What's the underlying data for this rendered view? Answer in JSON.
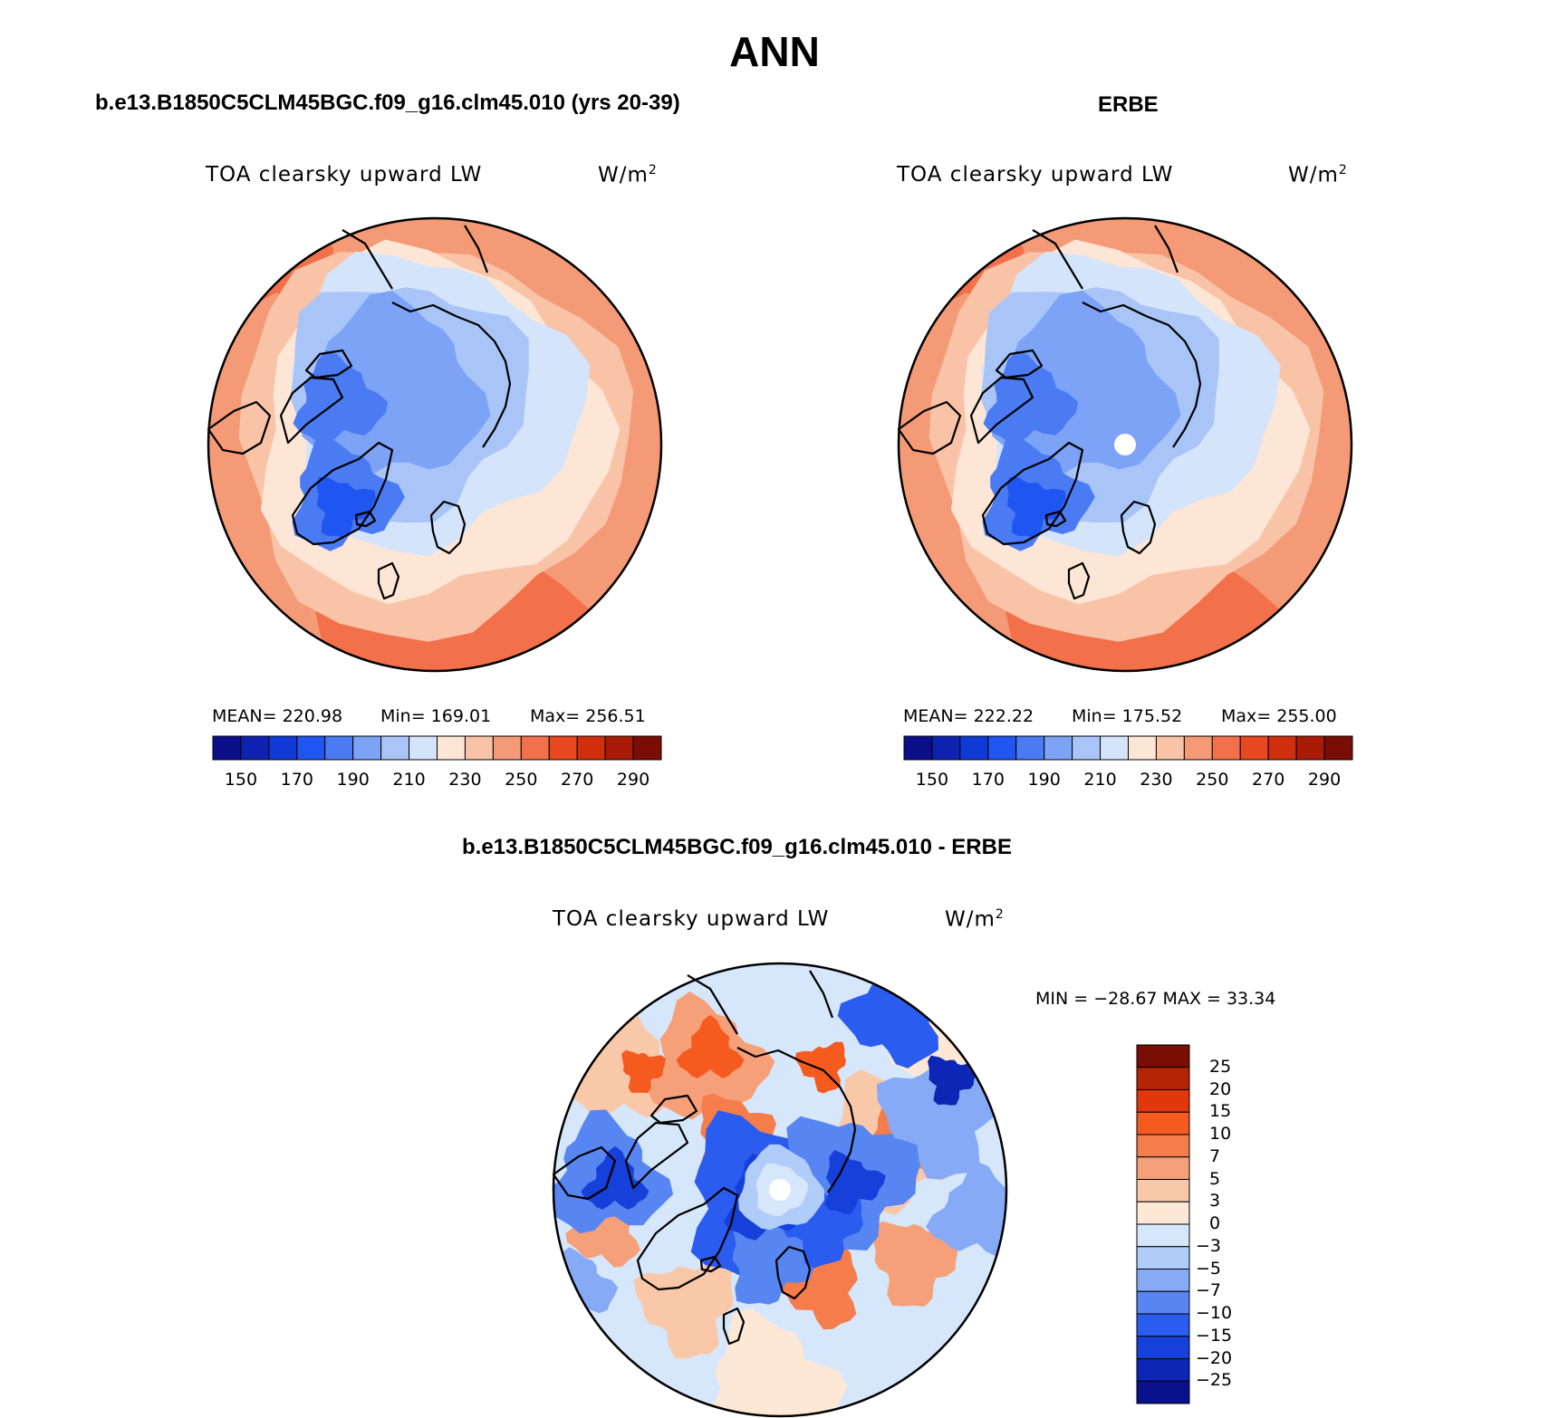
{
  "header": {
    "title": "ANN"
  },
  "panel_model": {
    "title": "b.e13.B1850C5CLM45BGC.f09_g16.clm45.010 (yrs 20-39)",
    "variable": "TOA clearsky upward LW",
    "units_base": "W/m",
    "units_exp": "2",
    "mean_label": "MEAN= 220.98",
    "min_label": "Min= 169.01",
    "max_label": "Max= 256.51",
    "pole_hole": false
  },
  "panel_obs": {
    "title": "ERBE",
    "variable": "TOA clearsky upward LW",
    "units_base": "W/m",
    "units_exp": "2",
    "mean_label": "MEAN= 222.22",
    "min_label": "Min= 175.52",
    "max_label": "Max= 255.00",
    "pole_hole": true
  },
  "panel_diff": {
    "title": "b.e13.B1850C5CLM45BGC.f09_g16.clm45.010 - ERBE",
    "variable": "TOA clearsky upward LW",
    "units_base": "W/m",
    "units_exp": "2",
    "minmax_label": "MIN = −28.67 MAX =   33.34",
    "pole_hole": true
  },
  "abs_colorbar": {
    "colors": [
      "#0b0f8a",
      "#0d23b0",
      "#0f3ad6",
      "#1f55f0",
      "#4a7bf2",
      "#7ca3f6",
      "#a9c5f8",
      "#d4e4fb",
      "#fde6d5",
      "#f9c3a8",
      "#f59a76",
      "#f2704a",
      "#e8481f",
      "#cf2f0c",
      "#a91b07",
      "#7a0d04"
    ],
    "tick_labels": [
      "150",
      "170",
      "190",
      "210",
      "230",
      "250",
      "270",
      "290"
    ]
  },
  "diff_colorbar": {
    "colors": [
      "#7a0d04",
      "#b52405",
      "#e0380c",
      "#f55a1f",
      "#f57c4b",
      "#f6a07a",
      "#f9c8a9",
      "#fde8d6",
      "#d6e7fb",
      "#b0ccf8",
      "#86aaf6",
      "#5785f2",
      "#2b5cf0",
      "#1540d9",
      "#0d26b5",
      "#0a118c"
    ],
    "tick_labels": [
      "25",
      "20",
      "15",
      "10",
      "7",
      "5",
      "3",
      "0",
      "−3",
      "−5",
      "−7",
      "−10",
      "−15",
      "−20",
      "−25"
    ]
  }
}
